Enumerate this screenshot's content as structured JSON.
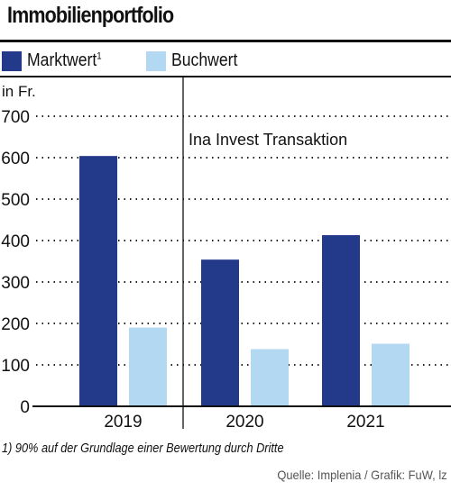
{
  "header": {
    "title": "Immobilienportfolio"
  },
  "legend": {
    "items": [
      {
        "label": "Marktwert",
        "sup": "1",
        "color": "#233a8b"
      },
      {
        "label": "Buchwert",
        "sup": "",
        "color": "#b3d8f2"
      }
    ]
  },
  "chart_data": {
    "type": "bar",
    "unit_label": "in Fr.",
    "categories": [
      "2019",
      "2020",
      "2021"
    ],
    "series": [
      {
        "name": "Marktwert",
        "values": [
          604,
          354,
          413
        ],
        "color": "#233a8b"
      },
      {
        "name": "Buchwert",
        "values": [
          190,
          138,
          151
        ],
        "color": "#b3d8f2"
      }
    ],
    "yticks": [
      0,
      100,
      200,
      300,
      400,
      500,
      600,
      700
    ],
    "ylim": [
      0,
      700
    ],
    "grid": "dotted",
    "annotation": "Ina Invest Transaktion"
  },
  "footnote": "1) 90% auf der Grundlage einer Bewertung durch Dritte",
  "source": "Quelle: Implenia / Grafik: FuW, lz"
}
